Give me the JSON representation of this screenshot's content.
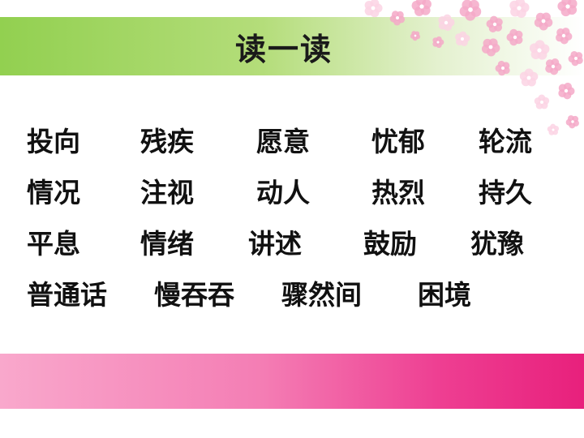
{
  "slide": {
    "title": "读一读",
    "rows": [
      [
        "投向",
        "残疾",
        "愿意",
        "忧郁",
        "轮流"
      ],
      [
        "情况",
        "注视",
        "动人",
        "热烈",
        "持久"
      ],
      [
        "平息",
        "情绪",
        "讲述",
        "鼓励",
        "犹豫"
      ],
      [
        "普通话",
        "慢吞吞",
        "骤然间",
        "困境"
      ]
    ]
  },
  "colors": {
    "title_band": "#92d050",
    "bottom_band": "#ee3f92",
    "flowers": "#f4a9c8"
  },
  "decoration": {
    "flowers": "flower-cluster-icon"
  }
}
